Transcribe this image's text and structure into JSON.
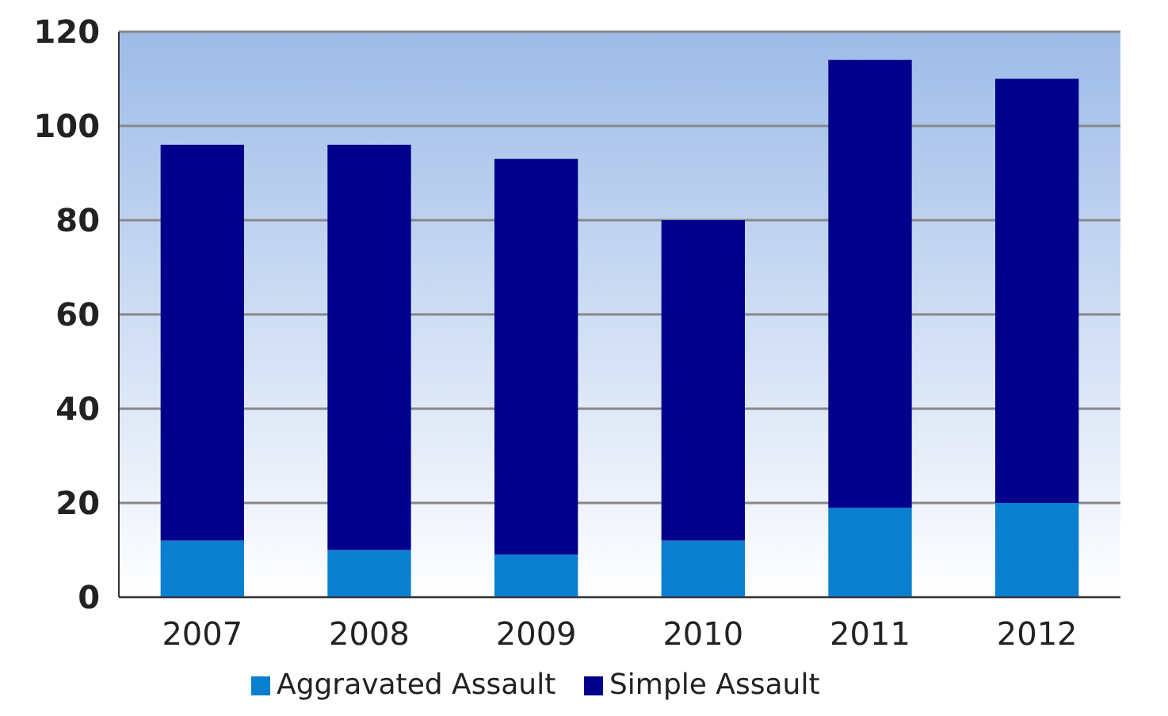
{
  "chart_data": {
    "type": "bar",
    "stacked": true,
    "categories": [
      "2007",
      "2008",
      "2009",
      "2010",
      "2011",
      "2012"
    ],
    "series": [
      {
        "name": "Aggravated Assault",
        "color": "#0a7fd0",
        "values": [
          12,
          10,
          9,
          12,
          19,
          20
        ]
      },
      {
        "name": "Simple Assault",
        "color": "#00008b",
        "values": [
          84,
          86,
          84,
          68,
          95,
          90
        ]
      }
    ],
    "ylim": [
      0,
      120
    ],
    "yticks": [
      0,
      20,
      40,
      60,
      80,
      100,
      120
    ],
    "grid": "y",
    "legend": "bottom"
  }
}
